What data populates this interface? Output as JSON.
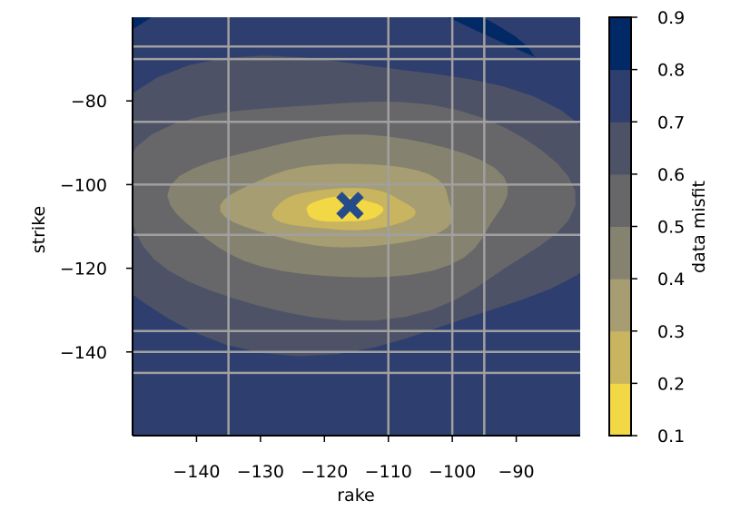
{
  "chart_data": {
    "type": "heatmap",
    "subtype": "filled-contour",
    "title": "",
    "xlabel": "rake",
    "ylabel": "strike",
    "xlim": [
      -150,
      -80
    ],
    "ylim": [
      -160,
      -60
    ],
    "x_ticks": [
      -140,
      -130,
      -120,
      -110,
      -100,
      -90
    ],
    "x_tick_labels": [
      "−140",
      "−130",
      "−120",
      "−110",
      "−100",
      "−90"
    ],
    "y_ticks": [
      -80,
      -100,
      -120,
      -140
    ],
    "y_tick_labels": [
      "−80",
      "−100",
      "−120",
      "−140"
    ],
    "grid_lines_x": [
      -135,
      -110,
      -100,
      -95
    ],
    "grid_lines_y": [
      -67,
      -70,
      -85,
      -100,
      -112,
      -135,
      -140,
      -145
    ],
    "grid_color": "#a0a0a0",
    "minimum_marker": {
      "symbol": "x",
      "rake": -116,
      "strike": -105,
      "color": "#254b8a"
    },
    "colorbar": {
      "label": "data misfit",
      "levels": [
        0.1,
        0.2,
        0.3,
        0.4,
        0.5,
        0.6,
        0.7,
        0.8,
        0.9
      ],
      "tick_labels": [
        "0.1",
        "0.2",
        "0.3",
        "0.4",
        "0.5",
        "0.6",
        "0.7",
        "0.8",
        "0.9"
      ],
      "colors": [
        "#f2d845",
        "#c9b55f",
        "#a69d72",
        "#85826f",
        "#676769",
        "#4d5266",
        "#2e3e6e",
        "#012966"
      ]
    },
    "contour_bands": [
      {
        "level": 0.8,
        "rake_center": -125,
        "strike_center": -70,
        "rake_halfwidth": 37,
        "strike_halfwidth": 22
      },
      {
        "level": 0.7,
        "rake_center": -120,
        "strike_center": -103,
        "rake_halfwidth": 50,
        "strike_halfwidth": 50
      },
      {
        "level": 0.6,
        "rake_center": -118,
        "strike_center": -104,
        "rake_halfwidth": 43,
        "strike_halfwidth": 35
      },
      {
        "level": 0.5,
        "rake_center": -117,
        "strike_center": -105,
        "rake_halfwidth": 35,
        "strike_halfwidth": 26
      },
      {
        "level": 0.4,
        "rake_center": -117,
        "strike_center": -105,
        "rake_halfwidth": 26,
        "strike_halfwidth": 17
      },
      {
        "level": 0.3,
        "rake_center": -117,
        "strike_center": -105,
        "rake_halfwidth": 18,
        "strike_halfwidth": 10
      },
      {
        "level": 0.2,
        "rake_center": -117,
        "strike_center": -106,
        "rake_halfwidth": 11,
        "strike_halfwidth": 5
      },
      {
        "level": 0.1,
        "rake_center": -117,
        "strike_center": -106,
        "rake_halfwidth": 6,
        "strike_halfwidth": 3
      }
    ]
  }
}
